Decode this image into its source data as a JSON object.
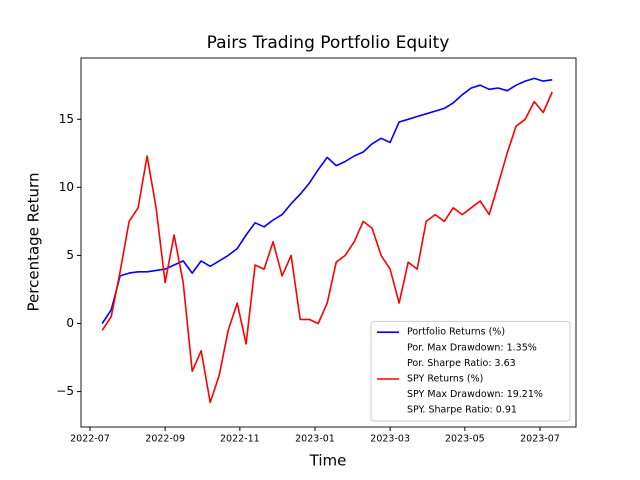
{
  "chart_data": {
    "type": "line",
    "title": "Pairs Trading Portfolio Equity",
    "xlabel": "Time",
    "ylabel": "Percentage Return",
    "x": [
      2022.527,
      2022.547,
      2022.567,
      2022.587,
      2022.607,
      2022.627,
      2022.647,
      2022.667,
      2022.687,
      2022.707,
      2022.727,
      2022.747,
      2022.767,
      2022.787,
      2022.807,
      2022.827,
      2022.847,
      2022.867,
      2022.887,
      2022.907,
      2022.927,
      2022.947,
      2022.967,
      2022.987,
      2023.007,
      2023.027,
      2023.047,
      2023.067,
      2023.087,
      2023.107,
      2023.127,
      2023.147,
      2023.167,
      2023.187,
      2023.207,
      2023.227,
      2023.247,
      2023.267,
      2023.287,
      2023.307,
      2023.327,
      2023.347,
      2023.367,
      2023.387,
      2023.407,
      2023.427,
      2023.447,
      2023.467,
      2023.487,
      2023.507,
      2023.527
    ],
    "series": [
      {
        "name": "Portfolio Returns (%)",
        "color": "#0000ff",
        "notes": [
          "Por. Max Drawdown: 1.35%",
          "Por. Sharpe Ratio: 3.63"
        ],
        "values": [
          0,
          1.0,
          3.5,
          3.7,
          3.8,
          3.8,
          3.9,
          4.0,
          4.3,
          4.6,
          3.7,
          4.6,
          4.2,
          4.6,
          5.0,
          5.5,
          6.5,
          7.4,
          7.1,
          7.6,
          8.0,
          8.8,
          9.5,
          10.3,
          11.3,
          12.2,
          11.6,
          11.9,
          12.3,
          12.6,
          13.2,
          13.6,
          13.3,
          14.8,
          15.0,
          15.2,
          15.4,
          15.6,
          15.8,
          16.2,
          16.8,
          17.3,
          17.5,
          17.2,
          17.3,
          17.1,
          17.5,
          17.8,
          18.0,
          17.8,
          17.9
        ]
      },
      {
        "name": "SPY Returns (%)",
        "color": "#ff0000",
        "notes": [
          "SPY Max Drawdown: 19.21%",
          "SPY. Sharpe Ratio: 0.91"
        ],
        "values": [
          -0.5,
          0.5,
          3.8,
          7.5,
          8.5,
          12.3,
          8.5,
          3.0,
          6.5,
          3.0,
          -3.5,
          -2.0,
          -5.8,
          -3.8,
          -0.5,
          1.5,
          -1.5,
          4.3,
          4.0,
          6.0,
          3.5,
          5.0,
          0.3,
          0.3,
          0.0,
          1.5,
          4.5,
          5.0,
          6.0,
          7.5,
          7.0,
          5.0,
          4.0,
          1.5,
          4.5,
          4.0,
          7.5,
          8.0,
          7.5,
          8.5,
          8.0,
          8.5,
          9.0,
          8.0,
          10.2,
          12.5,
          14.5,
          15.0,
          16.3,
          15.5,
          17.0
        ]
      }
    ],
    "xlim": [
      2022.48,
      2023.58
    ],
    "xticks": [
      {
        "value": 2022.5,
        "label": "2022-07"
      },
      {
        "value": 2022.667,
        "label": "2022-09"
      },
      {
        "value": 2022.833,
        "label": "2022-11"
      },
      {
        "value": 2023.0,
        "label": "2023-01"
      },
      {
        "value": 2023.167,
        "label": "2023-03"
      },
      {
        "value": 2023.333,
        "label": "2023-05"
      },
      {
        "value": 2023.5,
        "label": "2023-07"
      }
    ],
    "ylim": [
      -7.6,
      19.5
    ],
    "yticks": [
      {
        "value": -5,
        "label": "−5"
      },
      0,
      5,
      10,
      15
    ],
    "grid": false,
    "legend": "lower right"
  }
}
